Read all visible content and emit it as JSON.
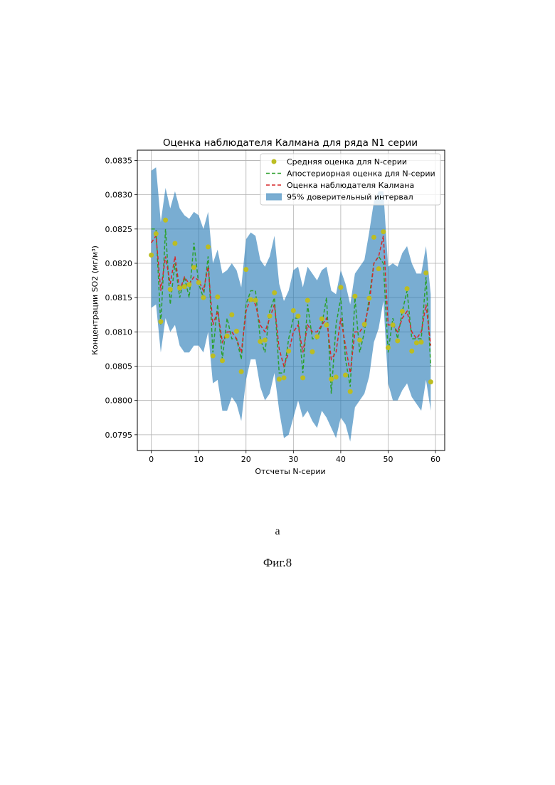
{
  "chart_data": {
    "type": "line",
    "title": "Оценка наблюдателя Калмана для ряда N1 серии",
    "xlabel": "Отсчеты N-серии",
    "ylabel": "Концентрации SO2 (мг/м³)",
    "xlim": [
      -2.95,
      61.95
    ],
    "ylim": [
      0.07927,
      0.08365
    ],
    "xticks": [
      0,
      10,
      20,
      30,
      40,
      50,
      60
    ],
    "xtick_labels": [
      "0",
      "10",
      "20",
      "30",
      "40",
      "50",
      "60"
    ],
    "yticks": [
      0.0795,
      0.08,
      0.0805,
      0.081,
      0.0815,
      0.082,
      0.0825,
      0.083,
      0.0835
    ],
    "ytick_labels": [
      "0.0795",
      "0.0800",
      "0.0805",
      "0.0810",
      "0.0815",
      "0.0820",
      "0.0825",
      "0.0830",
      "0.0835"
    ],
    "grid": true,
    "legend_position": "top-right",
    "x": [
      0,
      1,
      2,
      3,
      4,
      5,
      6,
      7,
      8,
      9,
      10,
      11,
      12,
      13,
      14,
      15,
      16,
      17,
      18,
      19,
      20,
      21,
      22,
      23,
      24,
      25,
      26,
      27,
      28,
      29,
      30,
      31,
      32,
      33,
      34,
      35,
      36,
      37,
      38,
      39,
      40,
      41,
      42,
      43,
      44,
      45,
      46,
      47,
      48,
      49,
      50,
      51,
      52,
      53,
      54,
      55,
      56,
      57,
      58,
      59
    ],
    "series": [
      {
        "name": "Средняя оценка для N-серии",
        "kind": "scatter",
        "color": "#bcbd22",
        "values": [
          0.08212,
          0.08243,
          0.08115,
          0.08263,
          0.08162,
          0.08229,
          0.08164,
          0.08166,
          0.08169,
          0.08194,
          0.08172,
          0.0815,
          0.08224,
          0.08065,
          0.08151,
          0.08058,
          0.08094,
          0.08125,
          0.08101,
          0.08042,
          0.08191,
          0.08147,
          0.08146,
          0.08086,
          0.08088,
          0.08123,
          0.08157,
          0.08031,
          0.08033,
          0.08072,
          0.08131,
          0.08123,
          0.08033,
          0.08146,
          0.08071,
          0.08093,
          0.08119,
          0.0811,
          0.08031,
          0.08034,
          0.08165,
          0.08037,
          0.08013,
          0.08152,
          0.08088,
          0.08111,
          0.08149,
          0.08238,
          0.08192,
          0.08246,
          0.08077,
          0.0811,
          0.08087,
          0.0813,
          0.08163,
          0.08072,
          0.08084,
          0.08085,
          0.08186,
          0.08027
        ]
      },
      {
        "name": "Апостериорная оценка для N-серии",
        "kind": "line",
        "dash": "dashed",
        "color": "#2ca02c",
        "values": [
          0.0825,
          0.0825,
          0.0811,
          0.0825,
          0.0814,
          0.082,
          0.0815,
          0.0818,
          0.0815,
          0.0823,
          0.0817,
          0.0815,
          0.0821,
          0.0807,
          0.0814,
          0.0806,
          0.0812,
          0.0809,
          0.0809,
          0.0806,
          0.0814,
          0.0816,
          0.0816,
          0.0809,
          0.0807,
          0.0813,
          0.0815,
          0.0804,
          0.0804,
          0.0809,
          0.0812,
          0.0812,
          0.0804,
          0.0814,
          0.0809,
          0.0809,
          0.0811,
          0.0815,
          0.0801,
          0.0811,
          0.0815,
          0.0806,
          0.0802,
          0.0815,
          0.0807,
          0.081,
          0.0815,
          0.082,
          0.0821,
          0.082,
          0.0807,
          0.0812,
          0.0809,
          0.0813,
          0.0816,
          0.0809,
          0.0809,
          0.0809,
          0.0818,
          0.0805
        ]
      },
      {
        "name": "Оценка наблюдателя Калмана",
        "kind": "line",
        "dash": "dashed",
        "color": "#d62728",
        "values": [
          0.0823,
          0.0824,
          0.0816,
          0.0821,
          0.0817,
          0.0821,
          0.0816,
          0.0818,
          0.0817,
          0.0818,
          0.08175,
          0.0816,
          0.08195,
          0.0811,
          0.0813,
          0.08085,
          0.081,
          0.081,
          0.0809,
          0.0807,
          0.0813,
          0.0815,
          0.0814,
          0.0811,
          0.081,
          0.0812,
          0.0814,
          0.08075,
          0.0805,
          0.0807,
          0.081,
          0.0811,
          0.0807,
          0.0811,
          0.081,
          0.081,
          0.0811,
          0.0812,
          0.0806,
          0.0807,
          0.0812,
          0.0808,
          0.0804,
          0.081,
          0.081,
          0.0811,
          0.0814,
          0.082,
          0.0821,
          0.0824,
          0.0811,
          0.0811,
          0.081,
          0.0812,
          0.0813,
          0.081,
          0.0809,
          0.081,
          0.0814,
          0.0808
        ]
      },
      {
        "name": "95% доверительный интервал",
        "kind": "band",
        "color": "#1f77b4",
        "opacity": 0.6,
        "lower": [
          0.08135,
          0.0814,
          0.0807,
          0.0812,
          0.081,
          0.0811,
          0.0808,
          0.0807,
          0.0807,
          0.0808,
          0.0808,
          0.0807,
          0.081,
          0.08025,
          0.0803,
          0.07985,
          0.07985,
          0.08005,
          0.07995,
          0.0797,
          0.0803,
          0.0806,
          0.0806,
          0.0802,
          0.08,
          0.0801,
          0.0804,
          0.07985,
          0.07945,
          0.0795,
          0.07975,
          0.08,
          0.07975,
          0.07985,
          0.0797,
          0.0796,
          0.07985,
          0.07975,
          0.0796,
          0.07945,
          0.07975,
          0.07965,
          0.0794,
          0.0799,
          0.08,
          0.0801,
          0.08035,
          0.08085,
          0.08105,
          0.08145,
          0.08025,
          0.08,
          0.08,
          0.08015,
          0.08025,
          0.08005,
          0.07995,
          0.07985,
          0.0803,
          0.07985
        ]
      }
    ],
    "band_upper": [
      0.08335,
      0.0834,
      0.0826,
      0.0831,
      0.0828,
      0.08305,
      0.0828,
      0.0827,
      0.08265,
      0.08275,
      0.0827,
      0.0825,
      0.08275,
      0.082,
      0.0822,
      0.08185,
      0.0819,
      0.082,
      0.0819,
      0.08165,
      0.08235,
      0.08245,
      0.0824,
      0.08205,
      0.08195,
      0.0821,
      0.0824,
      0.0817,
      0.08145,
      0.0816,
      0.0819,
      0.08195,
      0.08165,
      0.08195,
      0.08185,
      0.08175,
      0.0819,
      0.08195,
      0.0816,
      0.08155,
      0.0819,
      0.0817,
      0.0814,
      0.08185,
      0.08195,
      0.08205,
      0.08245,
      0.0829,
      0.08305,
      0.08305,
      0.08195,
      0.082,
      0.08195,
      0.08215,
      0.08225,
      0.082,
      0.08185,
      0.08185,
      0.08225,
      0.08155
    ]
  },
  "panel_letter": "а",
  "figure_caption": "Фиг.8"
}
